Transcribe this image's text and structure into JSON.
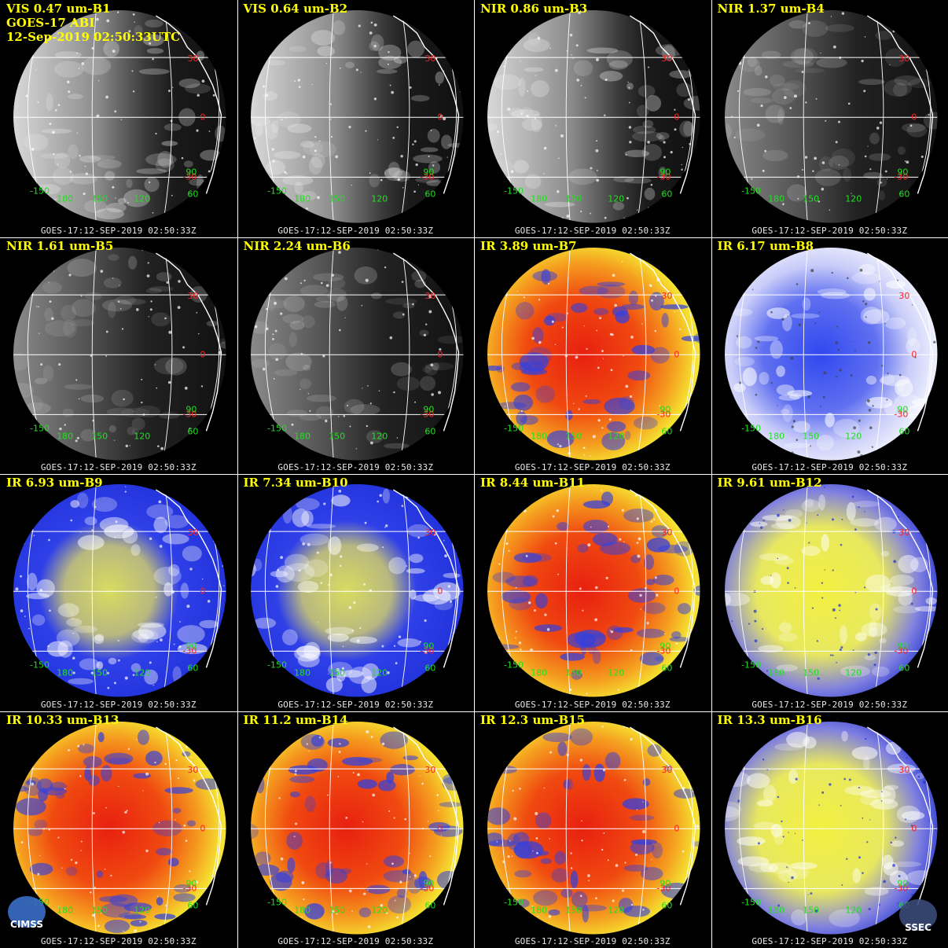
{
  "header": {
    "line2": "GOES-17 ABI",
    "line3": "12-Sep-2019 02:50:33UTC"
  },
  "panels": [
    {
      "title": "VIS 0.47 um-B1",
      "style": "vis"
    },
    {
      "title": "VIS 0.64 um-B2",
      "style": "vis"
    },
    {
      "title": "NIR 0.86 um-B3",
      "style": "vis"
    },
    {
      "title": "NIR 1.37 um-B4",
      "style": "nir_dark"
    },
    {
      "title": "NIR 1.61 um-B5",
      "style": "nir_dark"
    },
    {
      "title": "NIR 2.24 um-B6",
      "style": "nir_dark"
    },
    {
      "title": "IR 3.89 um-B7",
      "style": "ir_warm"
    },
    {
      "title": "IR 6.17 um-B8",
      "style": "wv_white"
    },
    {
      "title": "IR 6.93 um-B9",
      "style": "wv_blue"
    },
    {
      "title": "IR 7.34 um-B10",
      "style": "wv_blue"
    },
    {
      "title": "IR 8.44 um-B11",
      "style": "ir_warm"
    },
    {
      "title": "IR 9.61 um-B12",
      "style": "ir_yellow"
    },
    {
      "title": "IR 10.33 um-B13",
      "style": "ir_warm"
    },
    {
      "title": "IR 11.2 um-B14",
      "style": "ir_warm"
    },
    {
      "title": "IR 12.3 um-B15",
      "style": "ir_warm"
    },
    {
      "title": "IR 13.3 um-B16",
      "style": "ir_yellow"
    }
  ],
  "timestamp": "GOES-17:12-SEP-2019 02:50:33Z",
  "lat_labels": [
    "30",
    "0",
    "-30"
  ],
  "lon_labels": [
    "-150",
    "180",
    "150",
    "120",
    "90",
    "60"
  ],
  "colors": {
    "title": "#ffff00",
    "lat_label": "#ff2020",
    "lon_label": "#20e020",
    "grid": "#ffffff",
    "background": "#000000"
  },
  "logos": {
    "left": "CIMSS",
    "right": "SSEC"
  }
}
